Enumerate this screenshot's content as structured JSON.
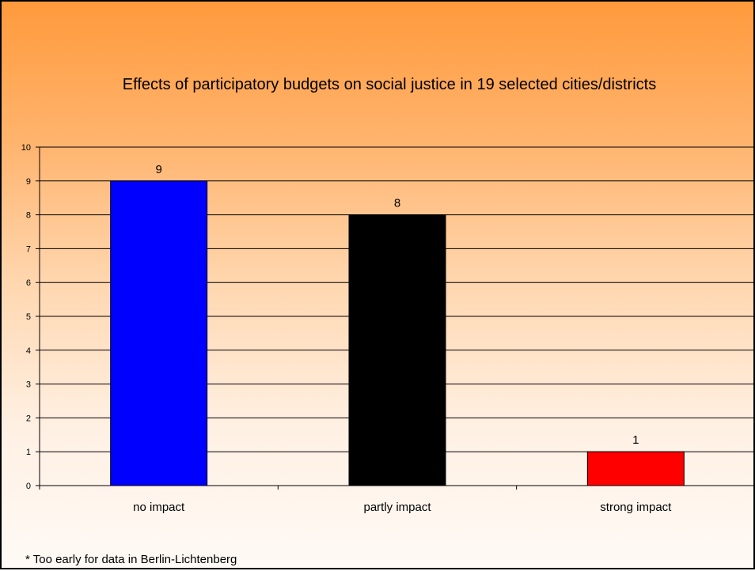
{
  "chart_data": {
    "type": "bar",
    "title": "Effects of participatory budgets on social justice in 19 selected cities/districts",
    "categories": [
      "no impact",
      "partly impact",
      "strong impact"
    ],
    "values": [
      9,
      8,
      1
    ],
    "data_labels": [
      "9",
      "8",
      "1"
    ],
    "bar_colors": [
      "#0000ff",
      "#000000",
      "#ff0000"
    ],
    "ylim": [
      0,
      10
    ],
    "yticks": [
      0,
      1,
      2,
      3,
      4,
      5,
      6,
      7,
      8,
      9,
      10
    ],
    "grid": true,
    "legend": "none",
    "xlabel": "",
    "ylabel": ""
  },
  "footnote": "* Too early for data in Berlin-Lichtenberg"
}
